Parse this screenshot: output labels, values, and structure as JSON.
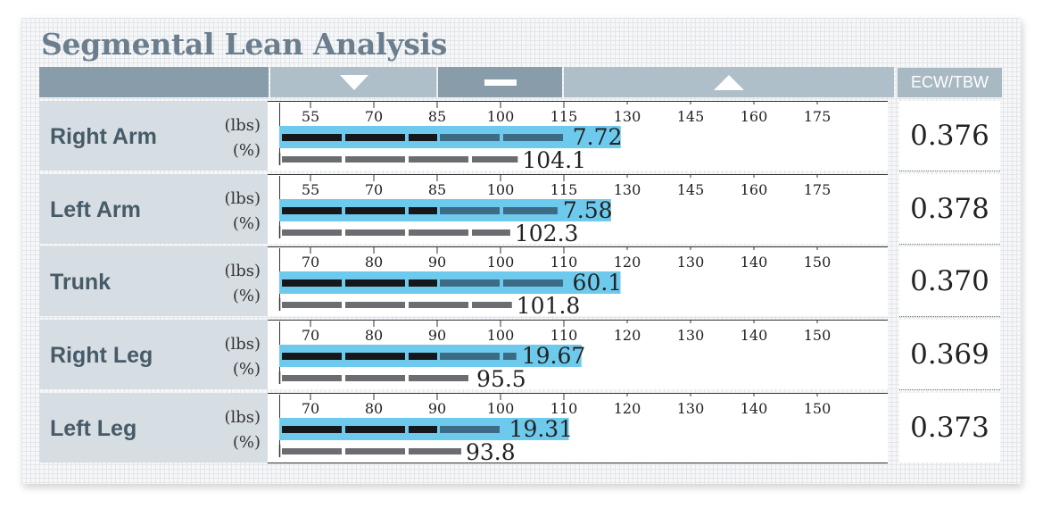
{
  "title": "Segmental Lean Analysis",
  "ecw_header": "ECW/TBW",
  "units": {
    "lbs": "(lbs)",
    "pct": "(%)"
  },
  "colors": {
    "highlight": "#6ecaec",
    "bar_dark": "#15171a",
    "bar_mid": "#3d6a85",
    "bar_gray": "#6b6d70"
  },
  "header_icons": [
    "triangle-down-icon",
    "minus-icon",
    "triangle-up-icon"
  ],
  "chart_data": {
    "type": "bar",
    "categories": [
      "Right Arm",
      "Left Arm",
      "Trunk",
      "Right Leg",
      "Left Leg"
    ],
    "series": [
      {
        "name": "(lbs)",
        "values": [
          7.72,
          7.58,
          60.1,
          19.67,
          19.31
        ]
      },
      {
        "name": "(%)",
        "values": [
          104.1,
          102.3,
          101.8,
          95.5,
          93.8
        ]
      }
    ],
    "axes": [
      {
        "ticks": [
          55,
          70,
          85,
          100,
          115,
          130,
          145,
          160,
          175
        ]
      },
      {
        "ticks": [
          55,
          70,
          85,
          100,
          115,
          130,
          145,
          160,
          175
        ]
      },
      {
        "ticks": [
          70,
          80,
          90,
          100,
          110,
          120,
          130,
          140,
          150
        ]
      },
      {
        "ticks": [
          70,
          80,
          90,
          100,
          110,
          120,
          130,
          140,
          150
        ]
      },
      {
        "ticks": [
          70,
          80,
          90,
          100,
          110,
          120,
          130,
          140,
          150
        ]
      }
    ],
    "bar_axis_percent": [
      115.8,
      113.5,
      110.5,
      102.5,
      100.5
    ]
  },
  "segments": [
    {
      "name": "Right Arm",
      "lbs": "7.72",
      "pct": "104.1",
      "ecw_tbw": "0.376"
    },
    {
      "name": "Left Arm",
      "lbs": "7.58",
      "pct": "102.3",
      "ecw_tbw": "0.378"
    },
    {
      "name": "Trunk",
      "lbs": "60.1",
      "pct": "101.8",
      "ecw_tbw": "0.370"
    },
    {
      "name": "Right Leg",
      "lbs": "19.67",
      "pct": "95.5",
      "ecw_tbw": "0.369"
    },
    {
      "name": "Left Leg",
      "lbs": "19.31",
      "pct": "93.8",
      "ecw_tbw": "0.373"
    }
  ]
}
